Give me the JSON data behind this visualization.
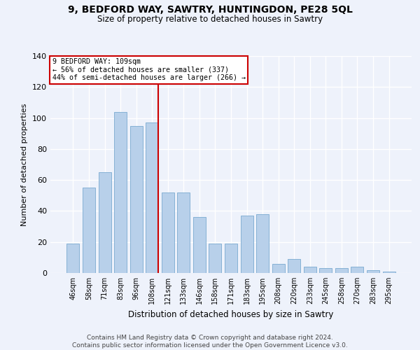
{
  "title1": "9, BEDFORD WAY, SAWTRY, HUNTINGDON, PE28 5QL",
  "title2": "Size of property relative to detached houses in Sawtry",
  "xlabel": "Distribution of detached houses by size in Sawtry",
  "ylabel": "Number of detached properties",
  "categories": [
    "46sqm",
    "58sqm",
    "71sqm",
    "83sqm",
    "96sqm",
    "108sqm",
    "121sqm",
    "133sqm",
    "146sqm",
    "158sqm",
    "171sqm",
    "183sqm",
    "195sqm",
    "208sqm",
    "220sqm",
    "233sqm",
    "245sqm",
    "258sqm",
    "270sqm",
    "283sqm",
    "295sqm"
  ],
  "values": [
    19,
    55,
    65,
    104,
    95,
    97,
    52,
    52,
    36,
    19,
    19,
    37,
    38,
    6,
    9,
    4,
    3,
    3,
    4,
    2,
    1
  ],
  "bar_color": "#b8d0ea",
  "bar_edge_color": "#7aaad0",
  "vline_x": 5.4,
  "vline_color": "#cc0000",
  "annotation_lines": [
    "9 BEDFORD WAY: 109sqm",
    "← 56% of detached houses are smaller (337)",
    "44% of semi-detached houses are larger (266) →"
  ],
  "annotation_box_color": "#ffffff",
  "annotation_box_edge": "#cc0000",
  "ylim": [
    0,
    140
  ],
  "yticks": [
    0,
    20,
    40,
    60,
    80,
    100,
    120,
    140
  ],
  "background_color": "#eef2fb",
  "grid_color": "#ffffff",
  "footnote": "Contains HM Land Registry data © Crown copyright and database right 2024.\nContains public sector information licensed under the Open Government Licence v3.0."
}
